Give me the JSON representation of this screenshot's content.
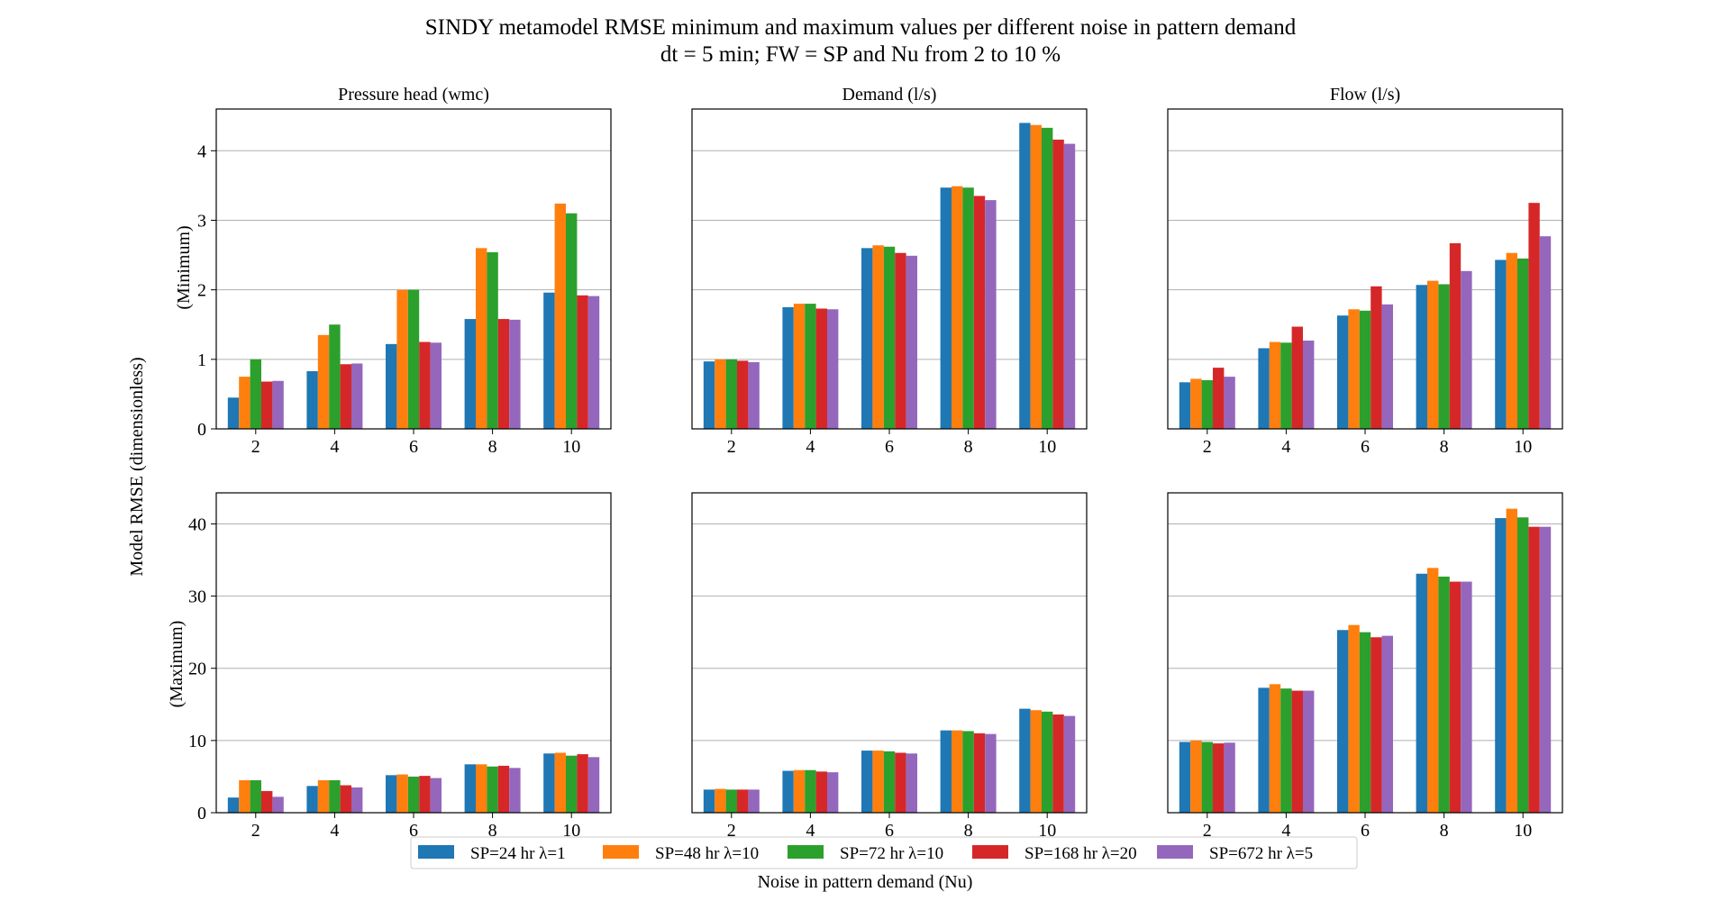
{
  "figure": {
    "title_line1": "SINDY metamodel RMSE minimum and maximum values per different noise in pattern demand",
    "title_line2": "dt = 5 min; FW = SP and Nu from 2 to 10 %",
    "xlabel": "Noise in pattern demand (Nu)",
    "ylabel": "Model RMSE (dimensionless)",
    "row_labels": [
      "(Minimum)",
      "(Maximum)"
    ],
    "column_titles": [
      "Pressure head (wmc)",
      "Demand (l/s)",
      "Flow (l/s)"
    ]
  },
  "legend": {
    "placement": "bottom-center",
    "entries": [
      {
        "label": "SP=24 hr λ=1",
        "color": "#1f77b4"
      },
      {
        "label": "SP=48 hr λ=10",
        "color": "#ff7f0e"
      },
      {
        "label": "SP=72 hr λ=10",
        "color": "#2ca02c"
      },
      {
        "label": "SP=168 hr λ=20",
        "color": "#d62728"
      },
      {
        "label": "SP=672 hr λ=5",
        "color": "#9467bd"
      }
    ]
  },
  "chart_data": [
    {
      "type": "bar",
      "title": "Pressure head (wmc)",
      "row": "Minimum",
      "categories": [
        "2",
        "4",
        "6",
        "8",
        "10"
      ],
      "ylim": [
        0,
        4.6
      ],
      "yticks": [
        "0",
        "1",
        "2",
        "3",
        "4"
      ],
      "grid": true,
      "series": [
        {
          "name": "SP=24 hr λ=1",
          "values": [
            0.45,
            0.83,
            1.22,
            1.58,
            1.96
          ]
        },
        {
          "name": "SP=48 hr λ=10",
          "values": [
            0.75,
            1.35,
            2.0,
            2.6,
            3.24
          ]
        },
        {
          "name": "SP=72 hr λ=10",
          "values": [
            1.0,
            1.5,
            2.0,
            2.54,
            3.1
          ]
        },
        {
          "name": "SP=168 hr λ=20",
          "values": [
            0.68,
            0.93,
            1.25,
            1.58,
            1.92
          ]
        },
        {
          "name": "SP=672 hr λ=5",
          "values": [
            0.69,
            0.94,
            1.24,
            1.57,
            1.91
          ]
        }
      ]
    },
    {
      "type": "bar",
      "title": "Demand (l/s)",
      "row": "Minimum",
      "categories": [
        "2",
        "4",
        "6",
        "8",
        "10"
      ],
      "ylim": [
        0,
        4.6
      ],
      "yticks": [
        "0",
        "1",
        "2",
        "3",
        "4"
      ],
      "grid": true,
      "series": [
        {
          "name": "SP=24 hr λ=1",
          "values": [
            0.97,
            1.75,
            2.6,
            3.47,
            4.4
          ]
        },
        {
          "name": "SP=48 hr λ=10",
          "values": [
            1.0,
            1.8,
            2.64,
            3.49,
            4.37
          ]
        },
        {
          "name": "SP=72 hr λ=10",
          "values": [
            1.0,
            1.8,
            2.62,
            3.47,
            4.33
          ]
        },
        {
          "name": "SP=168 hr λ=20",
          "values": [
            0.98,
            1.73,
            2.53,
            3.35,
            4.16
          ]
        },
        {
          "name": "SP=672 hr λ=5",
          "values": [
            0.96,
            1.72,
            2.49,
            3.29,
            4.1
          ]
        }
      ]
    },
    {
      "type": "bar",
      "title": "Flow (l/s)",
      "row": "Minimum",
      "categories": [
        "2",
        "4",
        "6",
        "8",
        "10"
      ],
      "ylim": [
        0,
        4.6
      ],
      "yticks": [
        "0",
        "1",
        "2",
        "3",
        "4"
      ],
      "grid": true,
      "series": [
        {
          "name": "SP=24 hr λ=1",
          "values": [
            0.67,
            1.16,
            1.63,
            2.07,
            2.43
          ]
        },
        {
          "name": "SP=48 hr λ=10",
          "values": [
            0.72,
            1.25,
            1.72,
            2.13,
            2.53
          ]
        },
        {
          "name": "SP=72 hr λ=10",
          "values": [
            0.7,
            1.24,
            1.7,
            2.08,
            2.45
          ]
        },
        {
          "name": "SP=168 hr λ=20",
          "values": [
            0.88,
            1.47,
            2.05,
            2.67,
            3.25
          ]
        },
        {
          "name": "SP=672 hr λ=5",
          "values": [
            0.75,
            1.27,
            1.79,
            2.27,
            2.77
          ]
        }
      ]
    },
    {
      "type": "bar",
      "title": "Pressure head (wmc)",
      "row": "Maximum",
      "categories": [
        "2",
        "4",
        "6",
        "8",
        "10"
      ],
      "ylim": [
        0,
        44.3
      ],
      "yticks": [
        "0",
        "10",
        "20",
        "30",
        "40"
      ],
      "grid": true,
      "series": [
        {
          "name": "SP=24 hr λ=1",
          "values": [
            2.1,
            3.7,
            5.2,
            6.7,
            8.2
          ]
        },
        {
          "name": "SP=48 hr λ=10",
          "values": [
            4.5,
            4.5,
            5.3,
            6.7,
            8.3
          ]
        },
        {
          "name": "SP=72 hr λ=10",
          "values": [
            4.5,
            4.5,
            5.0,
            6.4,
            7.9
          ]
        },
        {
          "name": "SP=168 hr λ=20",
          "values": [
            3.0,
            3.8,
            5.1,
            6.5,
            8.1
          ]
        },
        {
          "name": "SP=672 hr λ=5",
          "values": [
            2.2,
            3.5,
            4.8,
            6.2,
            7.7
          ]
        }
      ]
    },
    {
      "type": "bar",
      "title": "Demand (l/s)",
      "row": "Maximum",
      "categories": [
        "2",
        "4",
        "6",
        "8",
        "10"
      ],
      "ylim": [
        0,
        44.3
      ],
      "yticks": [
        "0",
        "10",
        "20",
        "30",
        "40"
      ],
      "grid": true,
      "series": [
        {
          "name": "SP=24 hr λ=1",
          "values": [
            3.2,
            5.8,
            8.6,
            11.4,
            14.4
          ]
        },
        {
          "name": "SP=48 hr λ=10",
          "values": [
            3.3,
            5.9,
            8.6,
            11.4,
            14.2
          ]
        },
        {
          "name": "SP=72 hr λ=10",
          "values": [
            3.2,
            5.9,
            8.5,
            11.3,
            14.0
          ]
        },
        {
          "name": "SP=168 hr λ=20",
          "values": [
            3.2,
            5.7,
            8.3,
            11.0,
            13.6
          ]
        },
        {
          "name": "SP=672 hr λ=5",
          "values": [
            3.2,
            5.6,
            8.2,
            10.9,
            13.4
          ]
        }
      ]
    },
    {
      "type": "bar",
      "title": "Flow (l/s)",
      "row": "Maximum",
      "categories": [
        "2",
        "4",
        "6",
        "8",
        "10"
      ],
      "ylim": [
        0,
        44.3
      ],
      "yticks": [
        "0",
        "10",
        "20",
        "30",
        "40"
      ],
      "grid": true,
      "series": [
        {
          "name": "SP=24 hr λ=1",
          "values": [
            9.8,
            17.3,
            25.3,
            33.1,
            40.8
          ]
        },
        {
          "name": "SP=48 hr λ=10",
          "values": [
            10.0,
            17.8,
            26.0,
            33.9,
            42.1
          ]
        },
        {
          "name": "SP=72 hr λ=10",
          "values": [
            9.8,
            17.2,
            25.0,
            32.7,
            40.9
          ]
        },
        {
          "name": "SP=168 hr λ=20",
          "values": [
            9.6,
            16.9,
            24.3,
            32.0,
            39.6
          ]
        },
        {
          "name": "SP=672 hr λ=5",
          "values": [
            9.7,
            16.9,
            24.5,
            32.0,
            39.6
          ]
        }
      ]
    }
  ]
}
